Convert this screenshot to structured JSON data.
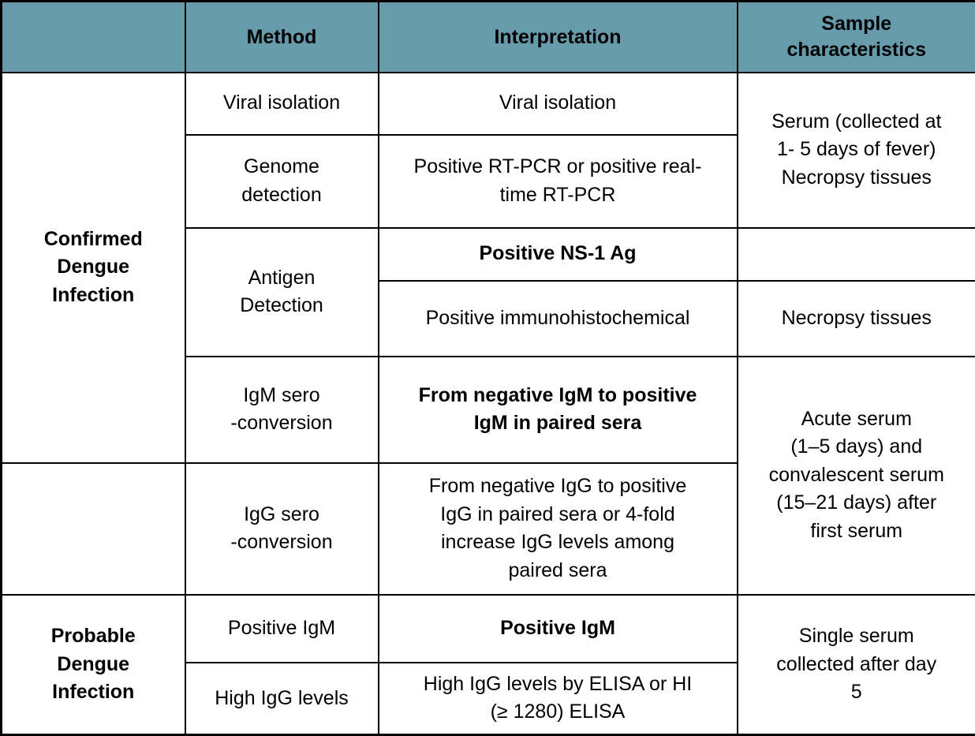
{
  "colors": {
    "header-bg": "#679aab",
    "border": "#000000",
    "text": "#000000",
    "bg": "#ffffff"
  },
  "chart_data": {
    "type": "table",
    "columns": [
      "",
      "Method",
      "Interpretation",
      "Sample\ncharacteristics"
    ],
    "cells": {
      "group_confirmed": "Confirmed\nDengue\nInfection",
      "group_empty": "",
      "group_probable": "Probable\nDengue\nInfection",
      "method_viral_isolation": "Viral isolation",
      "method_genome_detection": "Genome\ndetection",
      "method_antigen_detection": "Antigen\nDetection",
      "method_igm_seroconversion": "IgM sero\n-conversion",
      "method_igg_seroconversion": "IgG sero\n-conversion",
      "method_positive_igm": "Positive IgM",
      "method_high_igg_levels": "High IgG levels",
      "interp_viral_isolation": "Viral isolation",
      "interp_rt_pcr": "Positive RT-PCR or positive real-\ntime RT-PCR",
      "interp_ns1_ag": "Positive NS-1 Ag",
      "interp_immunohistochemical": "Positive immunohistochemical",
      "interp_igm_paired_sera": "From negative IgM to positive\nIgM in paired sera",
      "interp_igg_paired_sera": "From negative IgG to positive\nIgG in paired sera or 4-fold\nincrease IgG levels among\npaired sera",
      "interp_positive_igm": "Positive IgM",
      "interp_high_igg_elisa": "High IgG levels by ELISA or HI\n(≥ 1280) ELISA",
      "sample_serum_1_5_days": "Serum (collected at\n1- 5 days of fever)\nNecropsy tissues",
      "sample_empty": "",
      "sample_necropsy_tissues": "Necropsy tissues",
      "sample_acute_convalescent": "Acute serum\n(1–5 days) and\nconvalescent serum\n(15–21 days) after\nfirst serum",
      "sample_single_serum": "Single serum\ncollected after day\n5"
    }
  }
}
